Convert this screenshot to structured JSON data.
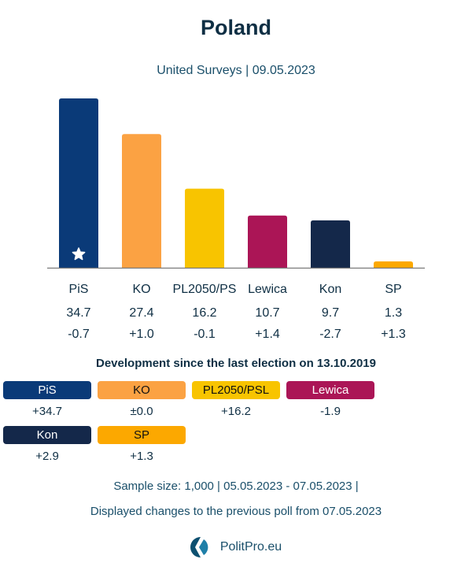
{
  "header": {
    "title": "Poland",
    "subtitle": "United Surveys | 09.05.2023"
  },
  "chart_data": {
    "type": "bar",
    "title": "Poland",
    "subtitle": "United Surveys | 09.05.2023",
    "xlabel": "",
    "ylabel": "",
    "ylim": [
      0,
      34.7
    ],
    "grid": false,
    "categories": [
      "PiS",
      "KO",
      "PL2050/PS",
      "Lewica",
      "Kon",
      "SP"
    ],
    "values": [
      34.7,
      27.4,
      16.2,
      10.7,
      9.7,
      1.3
    ],
    "value_labels": [
      "34.7",
      "27.4",
      "16.2",
      "10.7",
      "9.7",
      "1.3"
    ],
    "change_labels": [
      "-0.7",
      "+1.0",
      "-0.1",
      "+1.4",
      "-2.7",
      "+1.3"
    ],
    "changes": [
      -0.7,
      1.0,
      -0.1,
      1.4,
      -2.7,
      1.3
    ],
    "colors": [
      "#0a3a78",
      "#fba243",
      "#f8c400",
      "#ab1556",
      "#14284a",
      "#fca800"
    ],
    "leader_marker": {
      "category": "PiS",
      "icon": "star-icon"
    }
  },
  "development": {
    "title": "Development since the last election on 13.10.2019",
    "items": [
      {
        "label": "PiS",
        "value": "+34.7",
        "bg": "#0a3a78",
        "fg": "#ffffff"
      },
      {
        "label": "KO",
        "value": "±0.0",
        "bg": "#fba243",
        "fg": "#111111"
      },
      {
        "label": "PL2050/PSL",
        "value": "+16.2",
        "bg": "#f8c400",
        "fg": "#111111"
      },
      {
        "label": "Lewica",
        "value": "-1.9",
        "bg": "#ab1556",
        "fg": "#ffffff"
      },
      {
        "label": "Kon",
        "value": "+2.9",
        "bg": "#14284a",
        "fg": "#ffffff"
      },
      {
        "label": "SP",
        "value": "+1.3",
        "bg": "#fca800",
        "fg": "#111111"
      }
    ]
  },
  "footer": {
    "sample_line": "Sample size: 1,000 | 05.05.2023 - 07.05.2023 |",
    "changes_line": "Displayed changes to the previous poll from 07.05.2023",
    "brand": "PolitPro.eu",
    "brand_icon": "politpro-logo-icon"
  }
}
